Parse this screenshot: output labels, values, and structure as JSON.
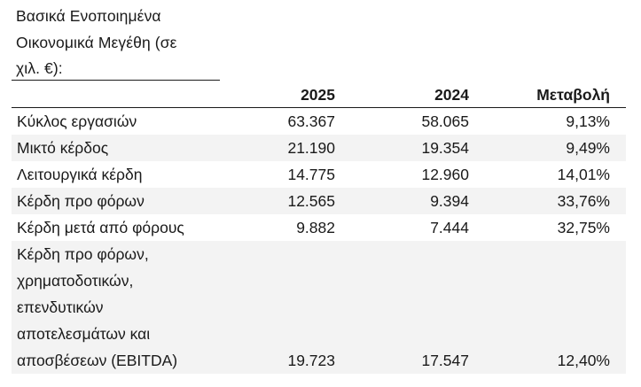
{
  "title_lines": [
    "Βασικά Ενοποιημένα",
    "Οικονομικά Μεγέθη (σε",
    "χιλ. €):"
  ],
  "headers": {
    "label": "",
    "y2025": "2025",
    "y2024": "2024",
    "change": "Μεταβολή"
  },
  "rows": [
    {
      "label": "Κύκλος εργασιών",
      "y2025": "63.367",
      "y2024": "58.065",
      "change": "9,13%"
    },
    {
      "label": "Μικτό κέρδος",
      "y2025": "21.190",
      "y2024": "19.354",
      "change": "9,49%"
    },
    {
      "label": "Λειτουργικά κέρδη",
      "y2025": "14.775",
      "y2024": "12.960",
      "change": "14,01%"
    },
    {
      "label": "Κέρδη προ φόρων",
      "y2025": "12.565",
      "y2024": "9.394",
      "change": "33,76%"
    },
    {
      "label": "Κέρδη μετά από φόρους",
      "y2025": "9.882",
      "y2024": "7.444",
      "change": "32,75%"
    }
  ],
  "ebitda": {
    "label_lines": [
      "Κέρδη προ φόρων,",
      "χρηματοδοτικών,",
      "επενδυτικών",
      "αποτελεσμάτων και",
      "αποσβέσεων (EBITDA)"
    ],
    "y2025": "19.723",
    "y2024": "17.547",
    "change": "12,40%"
  }
}
